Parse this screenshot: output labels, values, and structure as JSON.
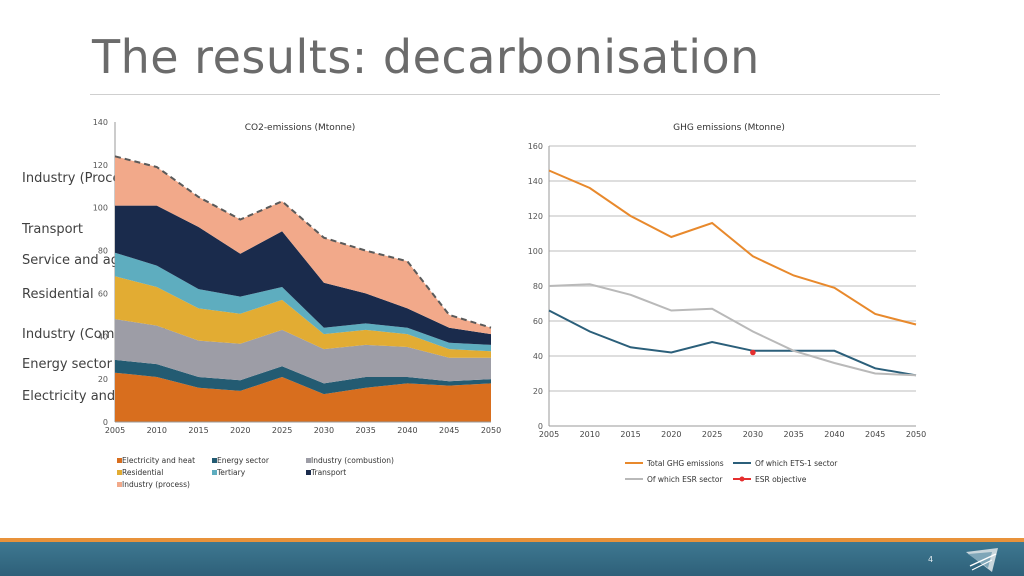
{
  "slide": {
    "title": "The results: decarbonisation",
    "page_number": "4"
  },
  "side_labels": [
    "Industry (Process-)",
    "Transport",
    "Service and agri.",
    "Residential",
    "Industry (Combustion)",
    "Energy sector",
    "Electricity and heat"
  ],
  "chart_data": [
    {
      "type": "area",
      "stacked": true,
      "title": "CO2-emissions (Mtonne)",
      "xlabel": "",
      "ylabel": "",
      "x": [
        2005,
        2010,
        2015,
        2020,
        2025,
        2030,
        2035,
        2040,
        2045,
        2050
      ],
      "x_ticks": [
        "2005",
        "2010",
        "2015",
        "2020",
        "2025",
        "2030",
        "2035",
        "2040",
        "2045",
        "2050"
      ],
      "y_ticks": [
        "0",
        "20",
        "40",
        "60",
        "80",
        "100",
        "120",
        "140"
      ],
      "ylim": [
        0,
        140
      ],
      "series": [
        {
          "name": "Electricity and heat",
          "color": "#d86e1e",
          "values": [
            23,
            21,
            16,
            14.5,
            21,
            13,
            16,
            18,
            17,
            18
          ]
        },
        {
          "name": "Energy sector",
          "color": "#235b72",
          "values": [
            6,
            6,
            5,
            5,
            5,
            5,
            5,
            3,
            2,
            2
          ]
        },
        {
          "name": "Industry (combustion)",
          "color": "#9d9da6",
          "values": [
            19,
            18,
            17,
            17,
            17,
            16,
            15,
            14,
            11,
            10
          ]
        },
        {
          "name": "Residential",
          "color": "#e2ac33",
          "values": [
            20,
            18,
            15,
            14,
            14,
            7,
            7,
            6,
            4,
            3
          ]
        },
        {
          "name": "Tertiary",
          "color": "#5eadbf",
          "values": [
            11,
            10,
            9,
            8,
            6,
            3,
            3,
            3,
            3,
            3
          ]
        },
        {
          "name": "Transport",
          "color": "#1a2b4c",
          "values": [
            22,
            28,
            29,
            20,
            26,
            21,
            14,
            9,
            7,
            5
          ]
        },
        {
          "name": "Industry (process)",
          "color": "#f2a98a",
          "values": [
            23,
            18,
            14,
            16,
            14,
            21,
            20,
            22,
            6,
            3
          ]
        }
      ]
    },
    {
      "type": "line",
      "title": "GHG emissions (Mtonne)",
      "xlabel": "",
      "ylabel": "",
      "x": [
        2005,
        2010,
        2015,
        2020,
        2025,
        2030,
        2035,
        2040,
        2045,
        2050
      ],
      "x_ticks": [
        "2005",
        "2010",
        "2015",
        "2020",
        "2025",
        "2030",
        "2035",
        "2040",
        "2045",
        "2050"
      ],
      "y_ticks": [
        "0",
        "20",
        "40",
        "60",
        "80",
        "100",
        "120",
        "140",
        "160"
      ],
      "ylim": [
        0,
        160
      ],
      "series": [
        {
          "name": "Total GHG emissions",
          "color": "#e8892c",
          "values": [
            146,
            136,
            120,
            108,
            116,
            97,
            86,
            79,
            64,
            58
          ]
        },
        {
          "name": "Of which ETS-1 sector",
          "color": "#2b5f7a",
          "values": [
            66,
            54,
            45,
            42,
            48,
            43,
            43,
            43,
            33,
            29
          ]
        },
        {
          "name": "Of which ESR sector",
          "color": "#b9b9b9",
          "values": [
            80,
            81,
            75,
            66,
            67,
            54,
            43,
            36,
            30,
            29
          ]
        },
        {
          "name": "ESR objective",
          "color": "#e52e2e",
          "values": [
            null,
            null,
            null,
            null,
            null,
            42,
            null,
            null,
            null,
            null
          ]
        }
      ]
    }
  ]
}
